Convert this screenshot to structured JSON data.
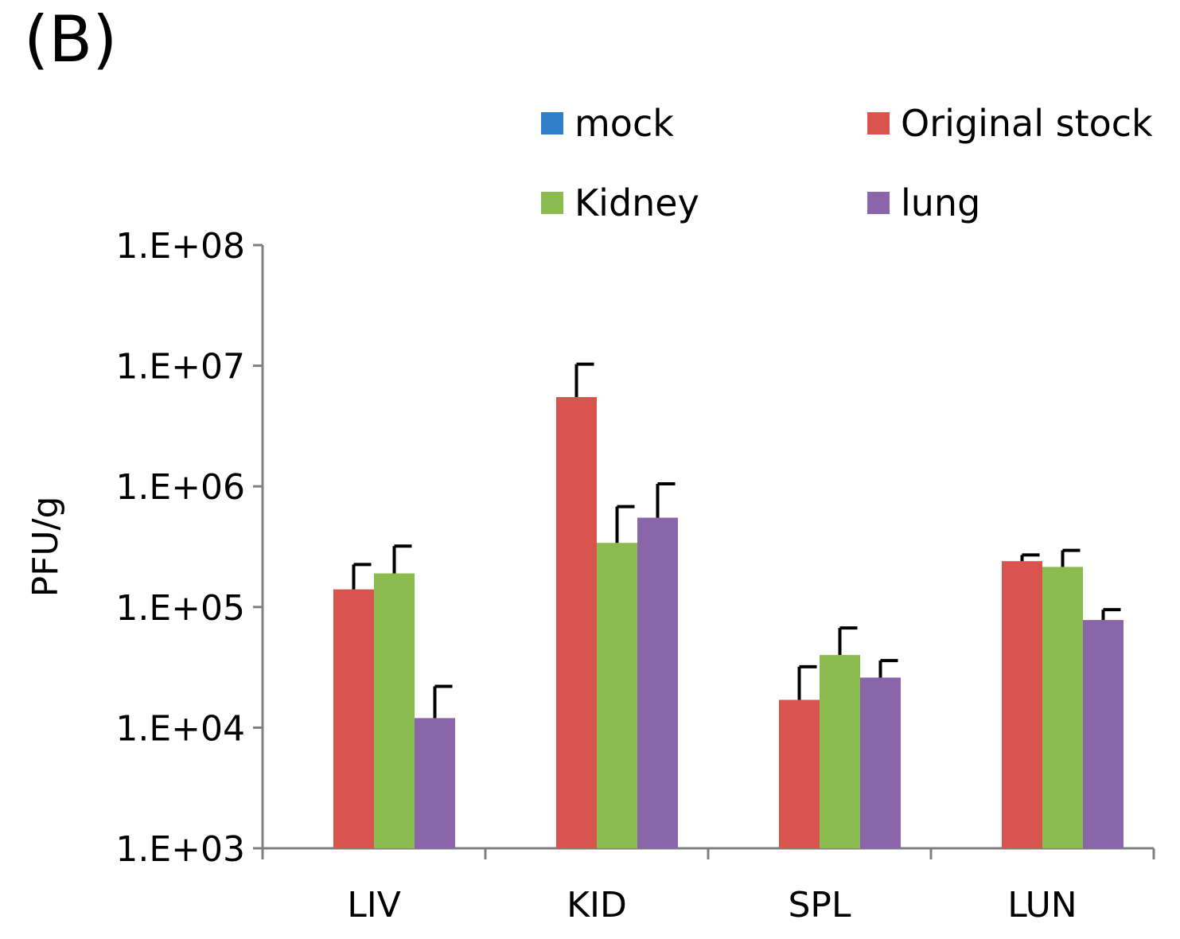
{
  "panel_label": "(B)",
  "chart_data": {
    "type": "bar",
    "scale": "log",
    "ylabel": "PFU/g",
    "xlabel": "",
    "ylim": [
      1000,
      100000000
    ],
    "yticks": [
      "1.E+03",
      "1.E+04",
      "1.E+05",
      "1.E+06",
      "1.E+07",
      "1.E+08"
    ],
    "categories": [
      "LIV",
      "KID",
      "SPL",
      "LUN"
    ],
    "series": [
      {
        "name": "mock",
        "color": "#2e7fc7",
        "values": [
          null,
          null,
          null,
          null
        ],
        "errors": [
          null,
          null,
          null,
          null
        ]
      },
      {
        "name": "Original stock",
        "color": "#d9534f",
        "values": [
          140000,
          5500000,
          17000,
          240000
        ],
        "errors": [
          85000,
          4800000,
          15000,
          30000
        ]
      },
      {
        "name": "Kidney",
        "color": "#8bbb4f",
        "values": [
          190000,
          340000,
          40000,
          215000
        ],
        "errors": [
          130000,
          340000,
          27000,
          80000
        ]
      },
      {
        "name": "lung",
        "color": "#8a65aa",
        "values": [
          12000,
          550000,
          26000,
          78000
        ],
        "errors": [
          10000,
          500000,
          10000,
          17000
        ]
      }
    ],
    "legend_position": "top"
  }
}
